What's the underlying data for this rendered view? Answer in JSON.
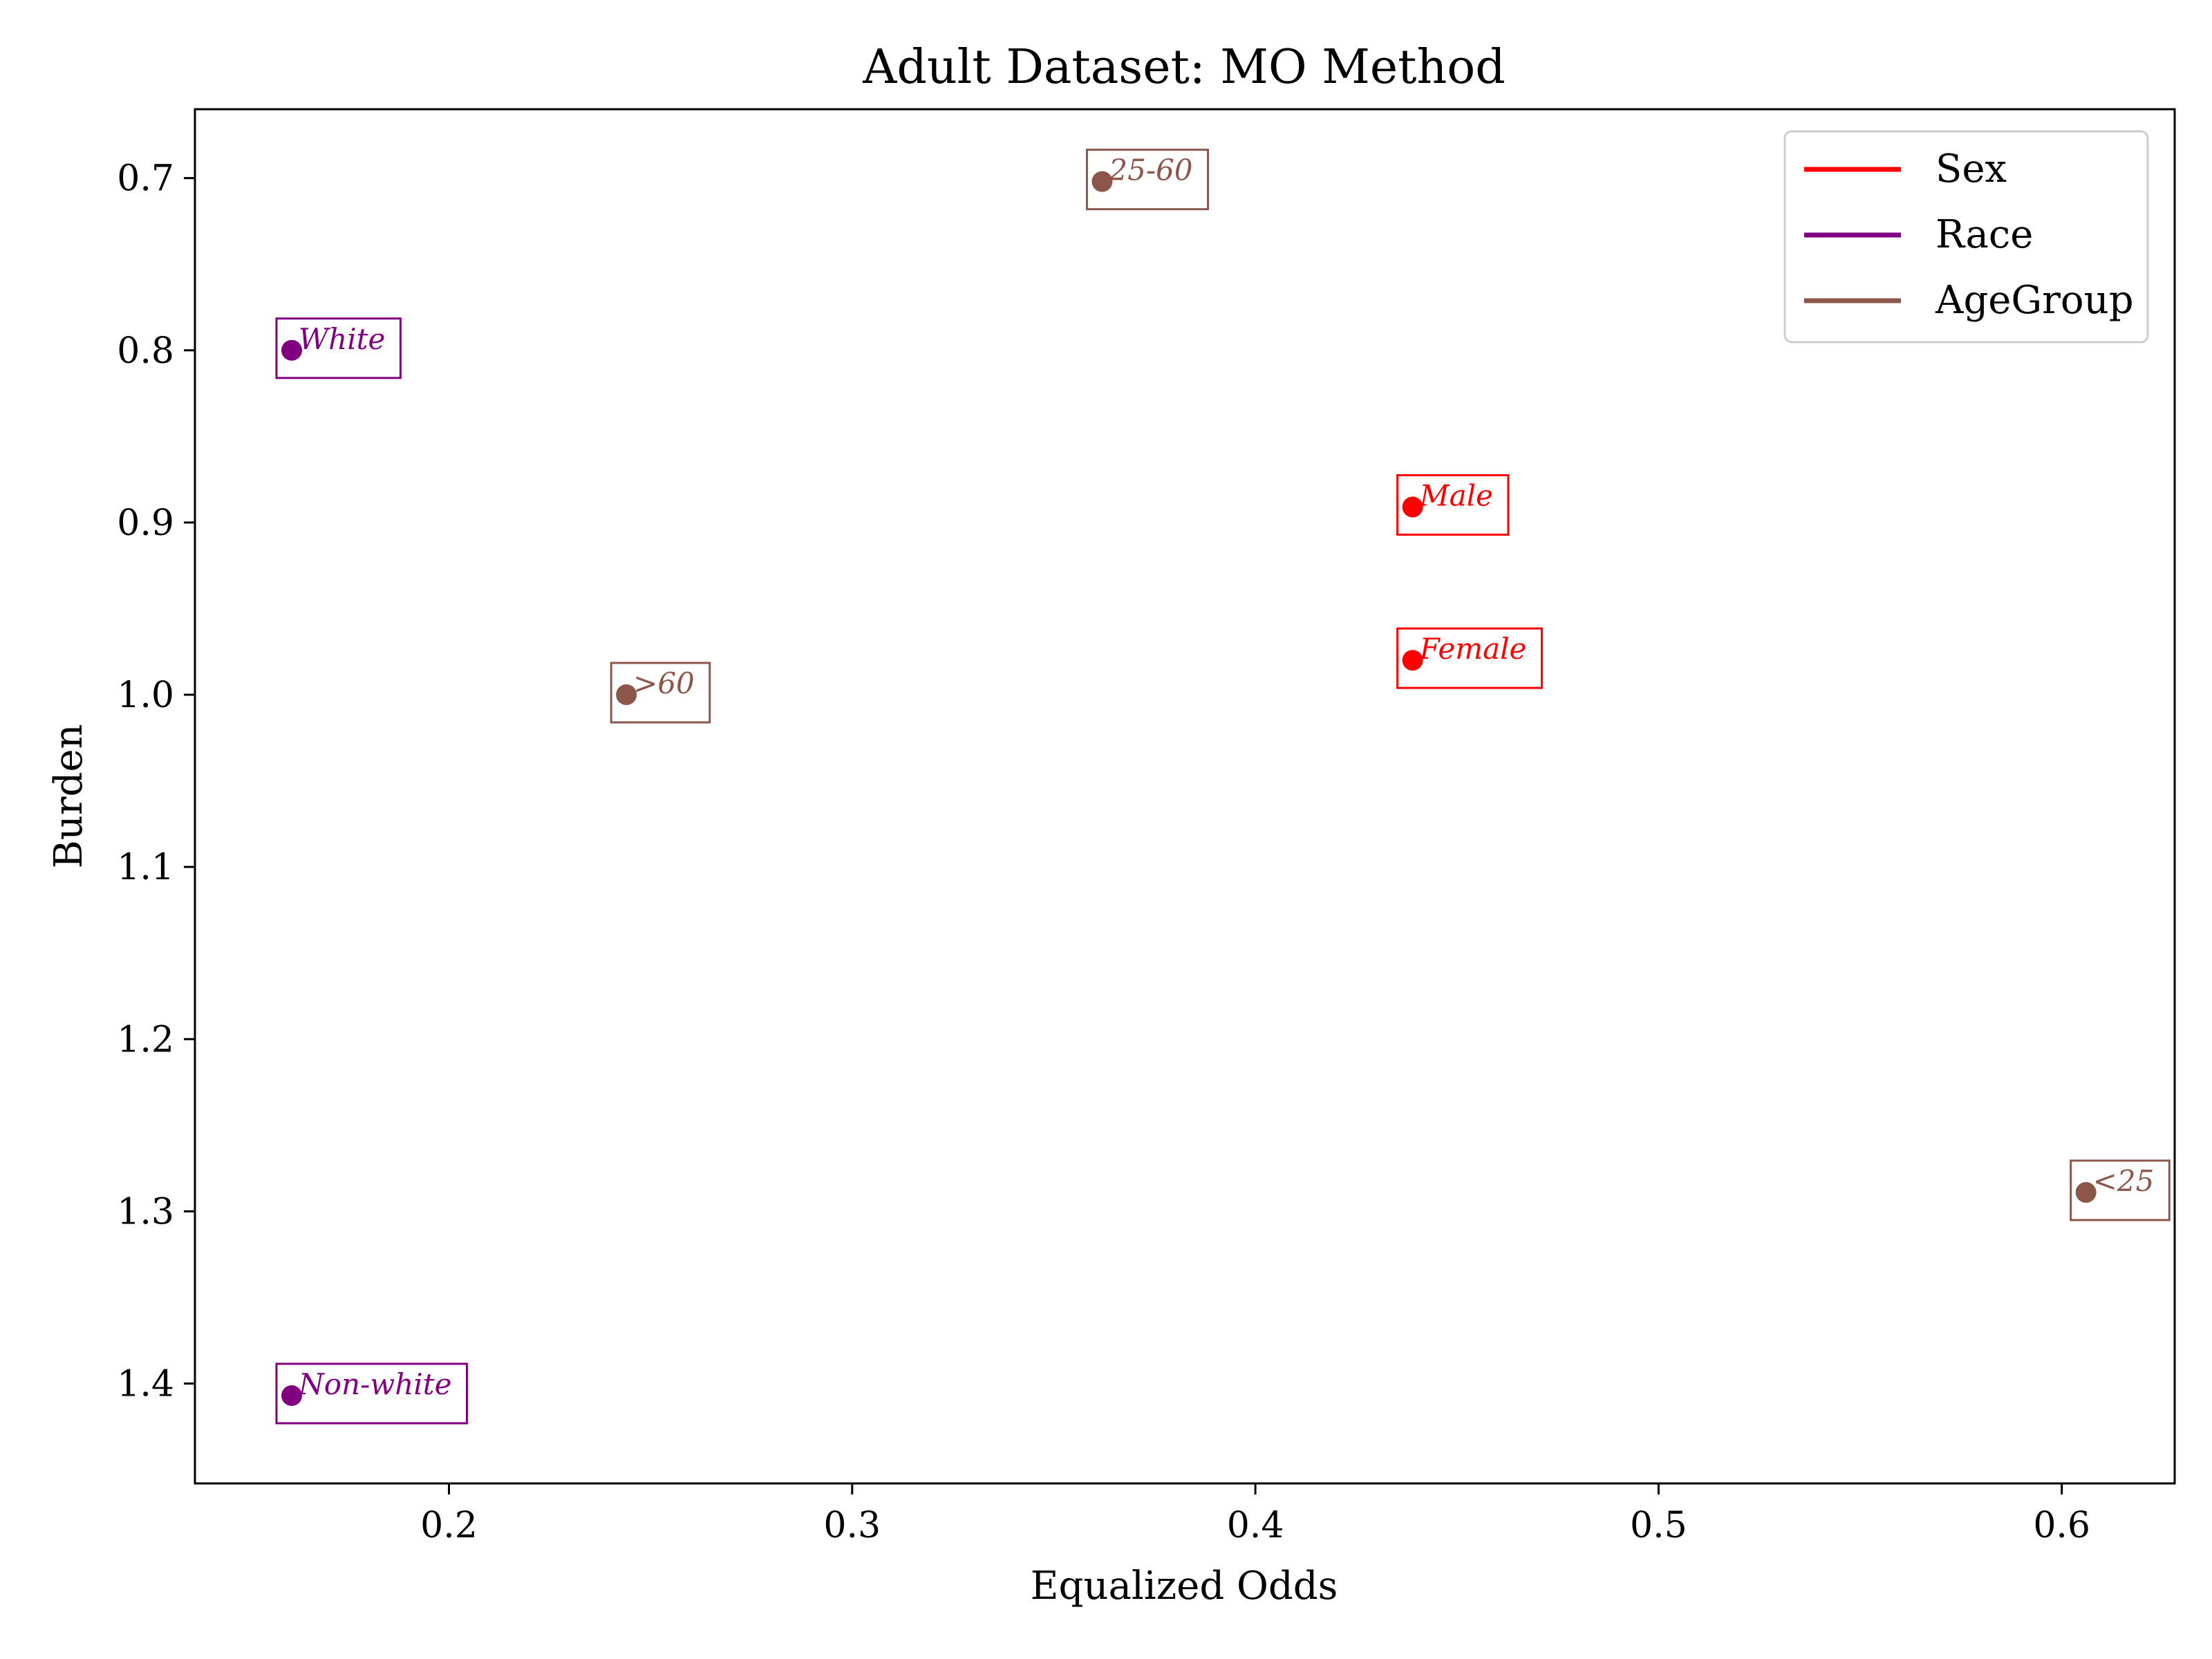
{
  "chart_data": {
    "type": "scatter",
    "title": "Adult Dataset: MO Method",
    "xlabel": "Equalized Odds",
    "ylabel": "Burden",
    "xlim": [
      0.137,
      0.628
    ],
    "ylim": [
      0.66,
      1.458
    ],
    "y_inverted": true,
    "xticks": [
      0.2,
      0.3,
      0.4,
      0.5,
      0.6
    ],
    "yticks": [
      0.7,
      0.8,
      0.9,
      1.0,
      1.1,
      1.2,
      1.3,
      1.4
    ],
    "xtick_labels": [
      "0.2",
      "0.3",
      "0.4",
      "0.5",
      "0.6"
    ],
    "ytick_labels": [
      "0.7",
      "0.8",
      "0.9",
      "1.0",
      "1.1",
      "1.2",
      "1.3",
      "1.4"
    ],
    "grid": false,
    "legend_position": "top-right",
    "series": [
      {
        "name": "Sex",
        "color": "#ff0000",
        "points": [
          {
            "label": "Male",
            "x": 0.439,
            "y": 0.891
          },
          {
            "label": "Female",
            "x": 0.439,
            "y": 0.98
          }
        ]
      },
      {
        "name": "Race",
        "color": "#800080",
        "points": [
          {
            "label": "White",
            "x": 0.161,
            "y": 0.8
          },
          {
            "label": "Non-white",
            "x": 0.161,
            "y": 1.407
          }
        ]
      },
      {
        "name": "AgeGroup",
        "color": "#8c564b",
        "points": [
          {
            "label": "25-60",
            "x": 0.362,
            "y": 0.702
          },
          {
            "label": ">60",
            "x": 0.244,
            "y": 1.0
          },
          {
            "label": "<25",
            "x": 0.606,
            "y": 1.289
          }
        ]
      }
    ]
  }
}
